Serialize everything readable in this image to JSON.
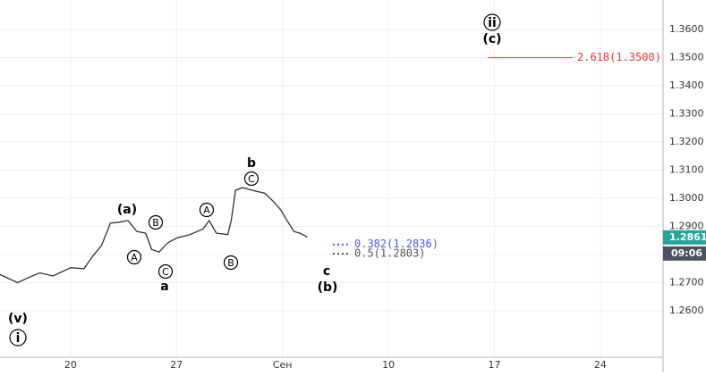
{
  "chart_data": {
    "type": "line",
    "color": "#333333",
    "x": [
      -3.33,
      -2.5,
      -2.08,
      -1.46,
      -0.83,
      0,
      0.63,
      1.04,
      1.46,
      1.88,
      2.29,
      2.71,
      3.13,
      3.54,
      3.83,
      4.17,
      4.58,
      5,
      5.63,
      6.25,
      6.54,
      6.88,
      7.42,
      7.58,
      7.79,
      8.13,
      8.54,
      9.17,
      9.58,
      9.92,
      10.21,
      10.54,
      10.83,
      11.17
    ],
    "values": [
      1.2729,
      1.27,
      1.2715,
      1.2735,
      1.2724,
      1.2753,
      1.275,
      1.2794,
      1.2832,
      1.2912,
      1.2915,
      1.2921,
      1.2882,
      1.2876,
      1.2818,
      1.2809,
      1.2841,
      1.2859,
      1.2871,
      1.2891,
      1.2921,
      1.2876,
      1.2871,
      1.2921,
      1.3029,
      1.3038,
      1.3029,
      1.3018,
      1.2988,
      1.2959,
      1.2921,
      1.2882,
      1.2876,
      1.2862
    ],
    "xlim": [
      -3.33,
      27.96
    ],
    "xticks": [
      {
        "value": 0,
        "label": "20"
      },
      {
        "value": 5,
        "label": "27"
      },
      {
        "value": 10,
        "label": "Сен"
      },
      {
        "value": 15,
        "label": "10"
      },
      {
        "value": 20,
        "label": "17"
      },
      {
        "value": 25,
        "label": "24"
      }
    ],
    "ylim": [
      1.2435,
      1.3705
    ],
    "yticks": [
      {
        "value": 1.26,
        "label": "1.2600"
      },
      {
        "value": 1.27,
        "label": "1.2700"
      },
      {
        "value": 1.28,
        "label": "1.2800"
      },
      {
        "value": 1.29,
        "label": "1.2900"
      },
      {
        "value": 1.3,
        "label": "1.3000"
      },
      {
        "value": 1.31,
        "label": "1.3100"
      },
      {
        "value": 1.32,
        "label": "1.3200"
      },
      {
        "value": 1.33,
        "label": "1.3300"
      },
      {
        "value": 1.34,
        "label": "1.3400"
      },
      {
        "value": 1.35,
        "label": "1.3500"
      },
      {
        "value": 1.36,
        "label": "1.3600"
      }
    ],
    "grid": true,
    "last_price": {
      "value": 1.2861,
      "label": "1.2861",
      "color": "#26a69a"
    },
    "time_label": "09:06",
    "levels": [
      {
        "label": "0.382(1.2836)",
        "value": 1.2836,
        "color": "#3d5afe"
      },
      {
        "label": "0.5(1.2803)",
        "value": 1.2803,
        "color": "#555555"
      },
      {
        "label": "2.618(1.3500)",
        "value": 1.35,
        "color": "#e53935"
      }
    ],
    "annotations": [
      {
        "text": "(v)",
        "circled": false
      },
      {
        "text": "i",
        "circled": true
      },
      {
        "text": "(a)",
        "circled": false
      },
      {
        "text": "A",
        "circled": true
      },
      {
        "text": "B",
        "circled": true
      },
      {
        "text": "C",
        "circled": true
      },
      {
        "text": "a",
        "circled": false
      },
      {
        "text": "A",
        "circled": true
      },
      {
        "text": "B",
        "circled": true
      },
      {
        "text": "b",
        "circled": false
      },
      {
        "text": "C",
        "circled": true
      },
      {
        "text": "c",
        "circled": false
      },
      {
        "text": "(b)",
        "circled": false
      },
      {
        "text": "ii",
        "circled": true
      },
      {
        "text": "(c)",
        "circled": false
      }
    ]
  }
}
